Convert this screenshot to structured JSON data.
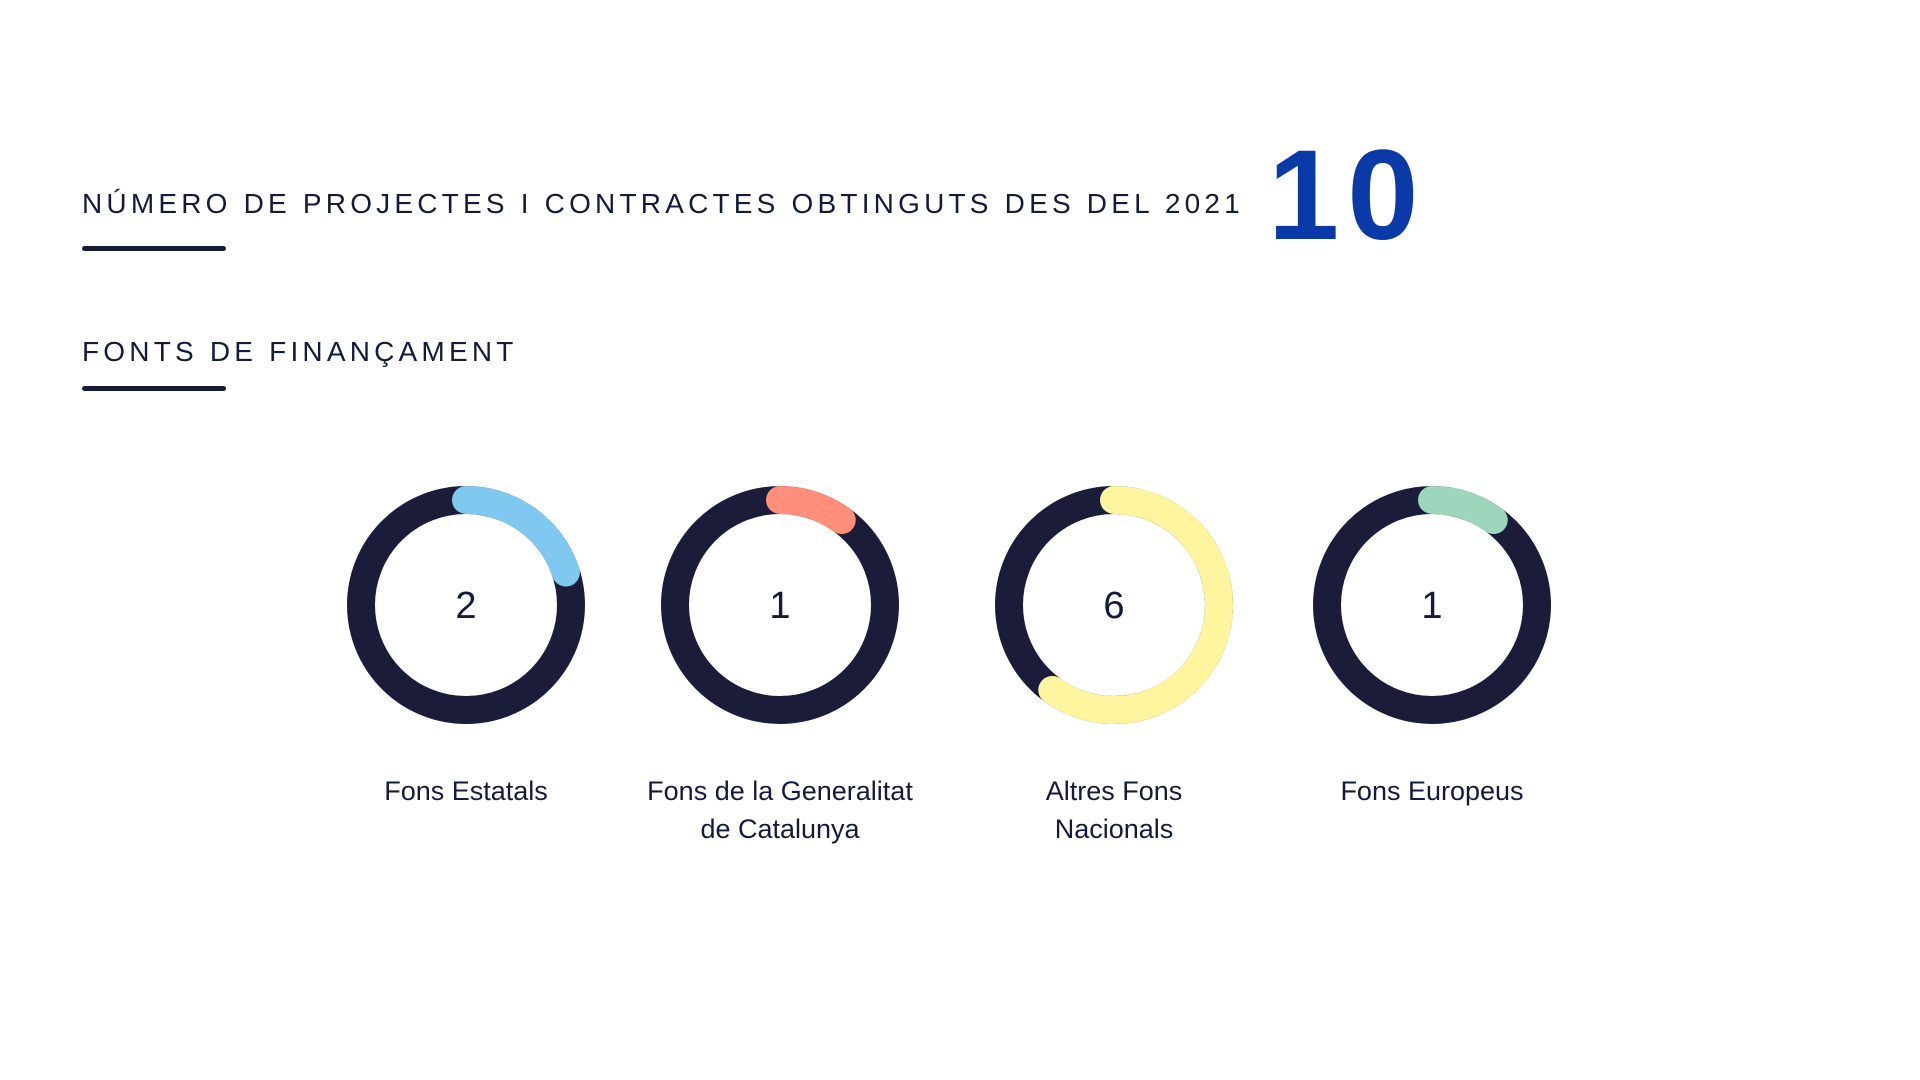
{
  "total": {
    "title": "NÚMERO DE PROJECTES I CONTRACTES OBTINGUTS DES DEL 2021",
    "value": "10"
  },
  "funding": {
    "title": "FONTS DE FINANÇAMENT"
  },
  "chart_data": {
    "type": "pie",
    "total": 10,
    "ring_color": "#1a1c3a",
    "categories": [
      "Fons Estatals",
      "Fons de la Generalitat de Catalunya",
      "Altres Fons Nacionals",
      "Fons Europeus"
    ],
    "label_lines": [
      [
        "Fons Estatals"
      ],
      [
        "Fons de la Generalitat",
        "de Catalunya"
      ],
      [
        "Altres Fons",
        "Nacionals"
      ],
      [
        "Fons Europeus"
      ]
    ],
    "values": [
      2,
      1,
      6,
      1
    ],
    "colors": [
      "#7fc8f0",
      "#ff8f7a",
      "#fff59e",
      "#9dd6bc"
    ]
  }
}
